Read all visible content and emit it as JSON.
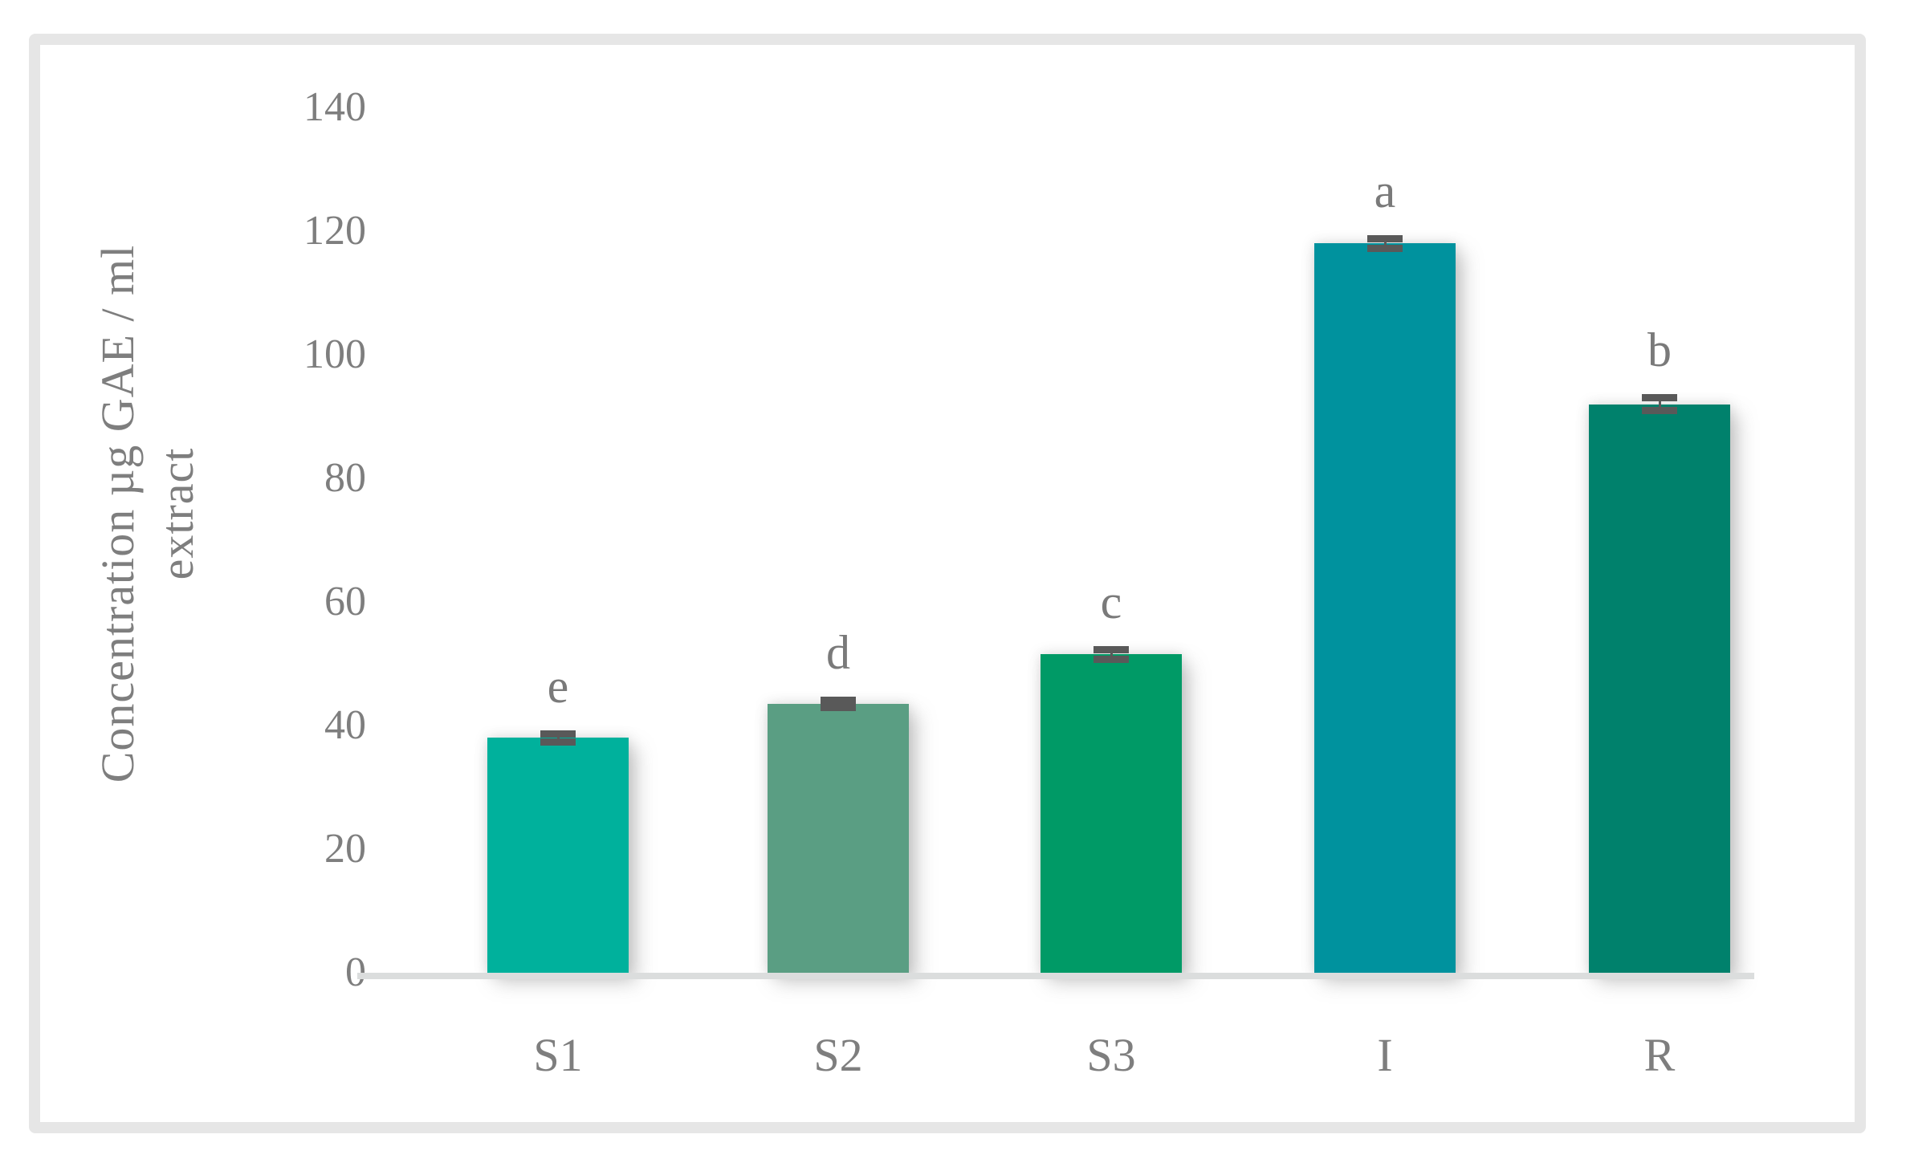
{
  "figure": {
    "background": "#ffffff",
    "border_color": "#e6e6e6"
  },
  "chart_data": {
    "type": "bar",
    "title": "",
    "xlabel": "",
    "ylabel": "Concentration µg GAE / ml extract",
    "ylabel_lines": [
      "Concentration µg GAE / ml",
      "extract"
    ],
    "categories": [
      "S1",
      "S2",
      "S3",
      "I",
      "R"
    ],
    "values": [
      38,
      43.5,
      51.5,
      118,
      92
    ],
    "errors": [
      0.6,
      0.5,
      0.7,
      0.7,
      1.0
    ],
    "sig_letters": [
      "e",
      "d",
      "c",
      "a",
      "b"
    ],
    "bar_colors": [
      "#00b19c",
      "#5a9e83",
      "#009a66",
      "#00929e",
      "#00816c"
    ],
    "yticks": [
      0,
      20,
      40,
      60,
      80,
      100,
      120,
      140
    ],
    "ylim": [
      0,
      140
    ],
    "grid": false,
    "legend": null,
    "text_color": "#7e7e7e",
    "axis_line_color": "#dbdddd",
    "error_bar_color": "#595959"
  }
}
